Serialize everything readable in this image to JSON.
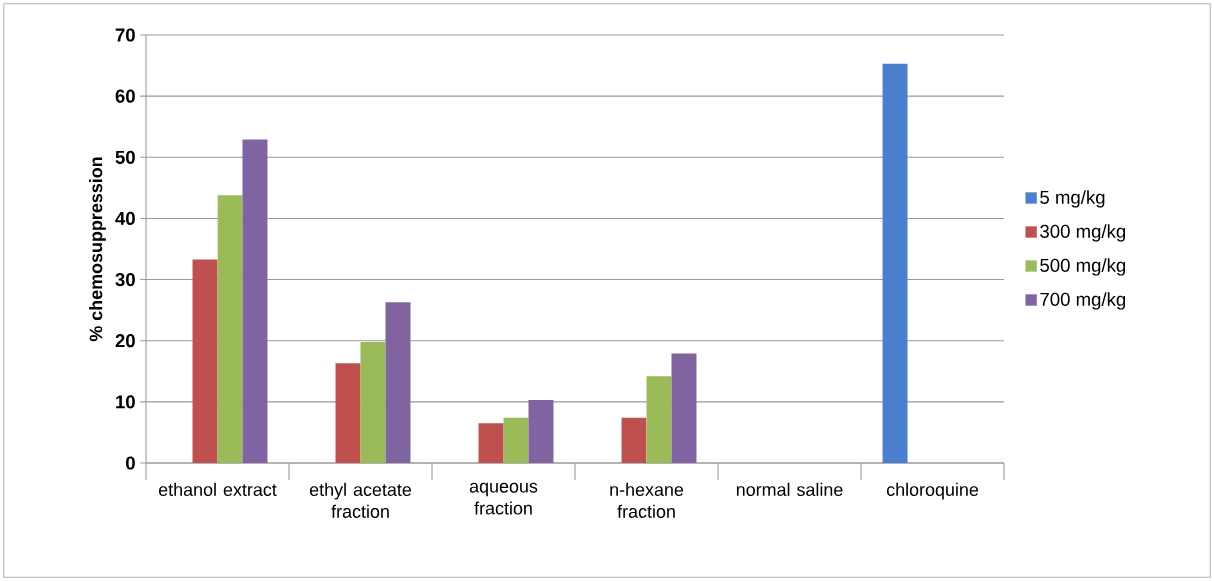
{
  "chart_data": {
    "type": "bar",
    "ylabel": "% chemosuppression",
    "categories": [
      "ethanol extract",
      "ethyl acetate fraction",
      "aqueous fraction",
      "n-hexane fraction",
      "normal saline",
      "chloroquine"
    ],
    "series": [
      {
        "name": "5 mg/kg",
        "color": "#4a7fd0",
        "values": [
          null,
          null,
          null,
          null,
          null,
          65.3
        ]
      },
      {
        "name": "300 mg/kg",
        "color": "#c0504d",
        "values": [
          33.3,
          16.3,
          6.5,
          7.4,
          null,
          null
        ]
      },
      {
        "name": "500 mg/kg",
        "color": "#9bbb59",
        "values": [
          43.8,
          19.8,
          7.4,
          14.2,
          null,
          null
        ]
      },
      {
        "name": "700 mg/kg",
        "color": "#8064a2",
        "values": [
          52.9,
          26.3,
          10.3,
          17.9,
          null,
          null
        ]
      }
    ],
    "ylim": [
      0,
      70
    ],
    "yticks": [
      0,
      10,
      20,
      30,
      40,
      50,
      60,
      70
    ],
    "grid": "y",
    "legend": "right"
  }
}
